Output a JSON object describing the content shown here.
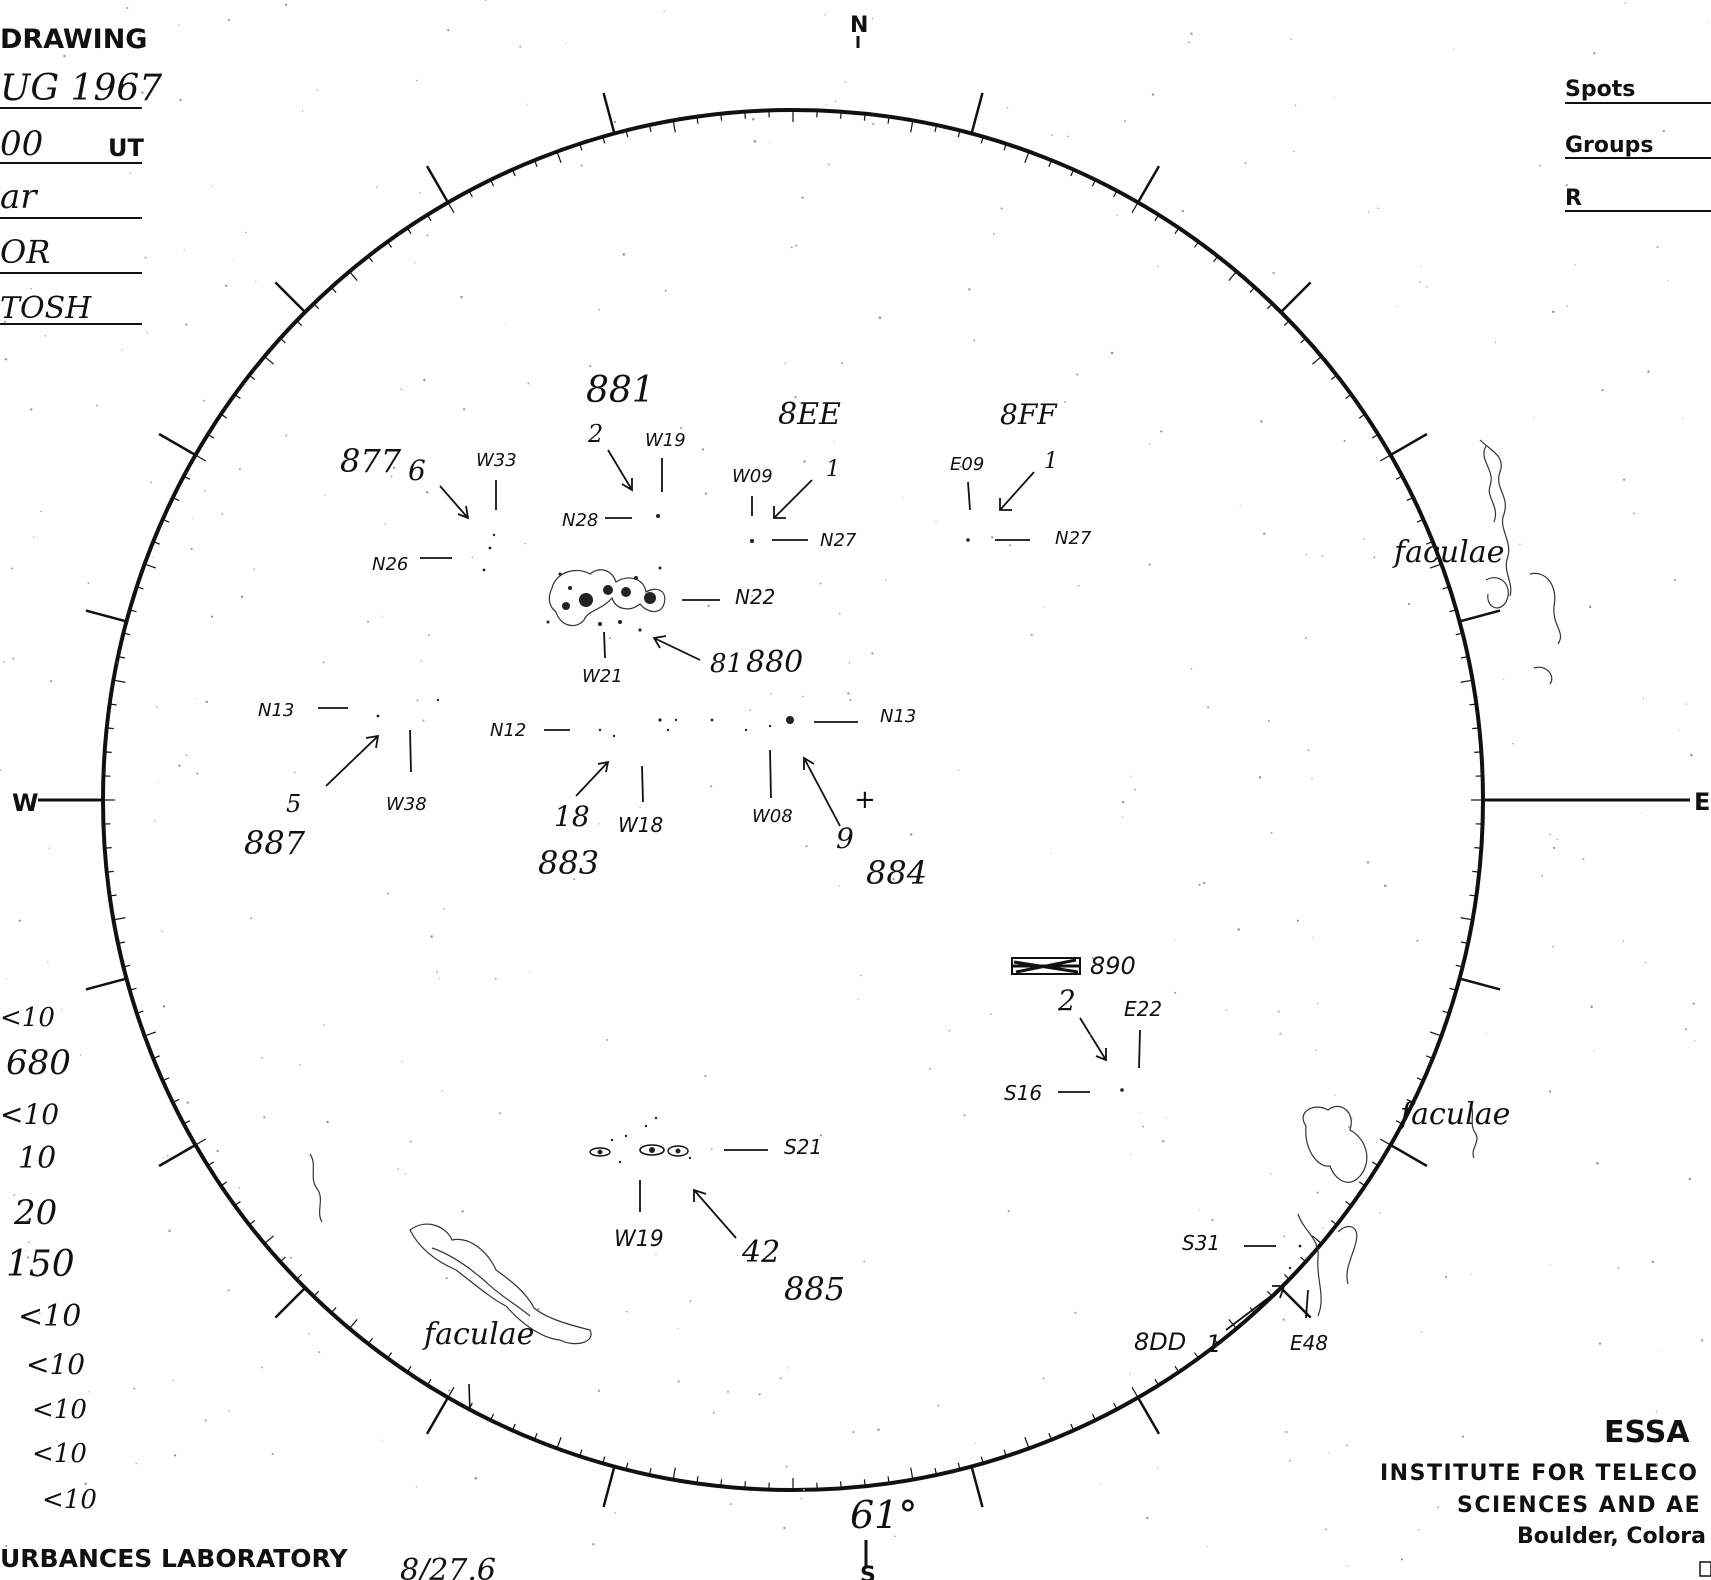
{
  "header": {
    "title": "DRAWING",
    "date": "UG 1967",
    "time": "00",
    "time_unit": "UT",
    "field_3": "ar",
    "field_4": "OR",
    "observer": "TOSH"
  },
  "summary": {
    "spots_label": "Spots",
    "groups_label": "Groups",
    "r_label": "R"
  },
  "compass": {
    "north": "N",
    "south": "S",
    "west": "W",
    "east": "E"
  },
  "angle_reading": "61°",
  "footer_left": "URBANCES LABORATORY",
  "footer_code": "8/27.6",
  "institution": {
    "name": "ESSA",
    "line1": "INSTITUTE FOR TELECO",
    "line2": "SCIENCES AND AE",
    "line3": "Boulder, Colora"
  },
  "left_column_values": [
    "<10",
    "680",
    "<10",
    "10",
    "20",
    "150",
    "<10",
    "<10",
    "<10",
    "<10",
    "<10"
  ],
  "groups": {
    "g881": {
      "number": "881",
      "count": "2",
      "lon": "W19",
      "lat": "N28"
    },
    "g877": {
      "number": "877",
      "count": "6",
      "lon": "W33",
      "lat": "N26"
    },
    "g8EE": {
      "number": "8EE",
      "count": "1",
      "lon": "W09",
      "lat": "N27"
    },
    "g8FF": {
      "number": "8FF",
      "count": "1",
      "lon": "E09",
      "lat": "N27"
    },
    "g880": {
      "number": "880",
      "count": "81",
      "lon": "W21",
      "lat": "N22"
    },
    "g887": {
      "number": "887",
      "count": "5",
      "lon": "W38",
      "lat": "N13"
    },
    "g883": {
      "number": "883",
      "count": "18",
      "lon": "W18",
      "lat": "N12"
    },
    "g884": {
      "number": "884",
      "count": "9",
      "lon": "W08",
      "lat": "N13"
    },
    "g890": {
      "number": "890",
      "count": "2",
      "lon": "E22",
      "lat": "S16"
    },
    "g885": {
      "number": "885",
      "count": "42",
      "lon": "W19",
      "lat": "S21"
    },
    "g8DD": {
      "number": "8DD",
      "count": "1",
      "lon": "E48",
      "lat": "S31"
    }
  },
  "plus_marker": "+",
  "faculae_labels": [
    "faculae",
    "faculae",
    "faculae"
  ]
}
